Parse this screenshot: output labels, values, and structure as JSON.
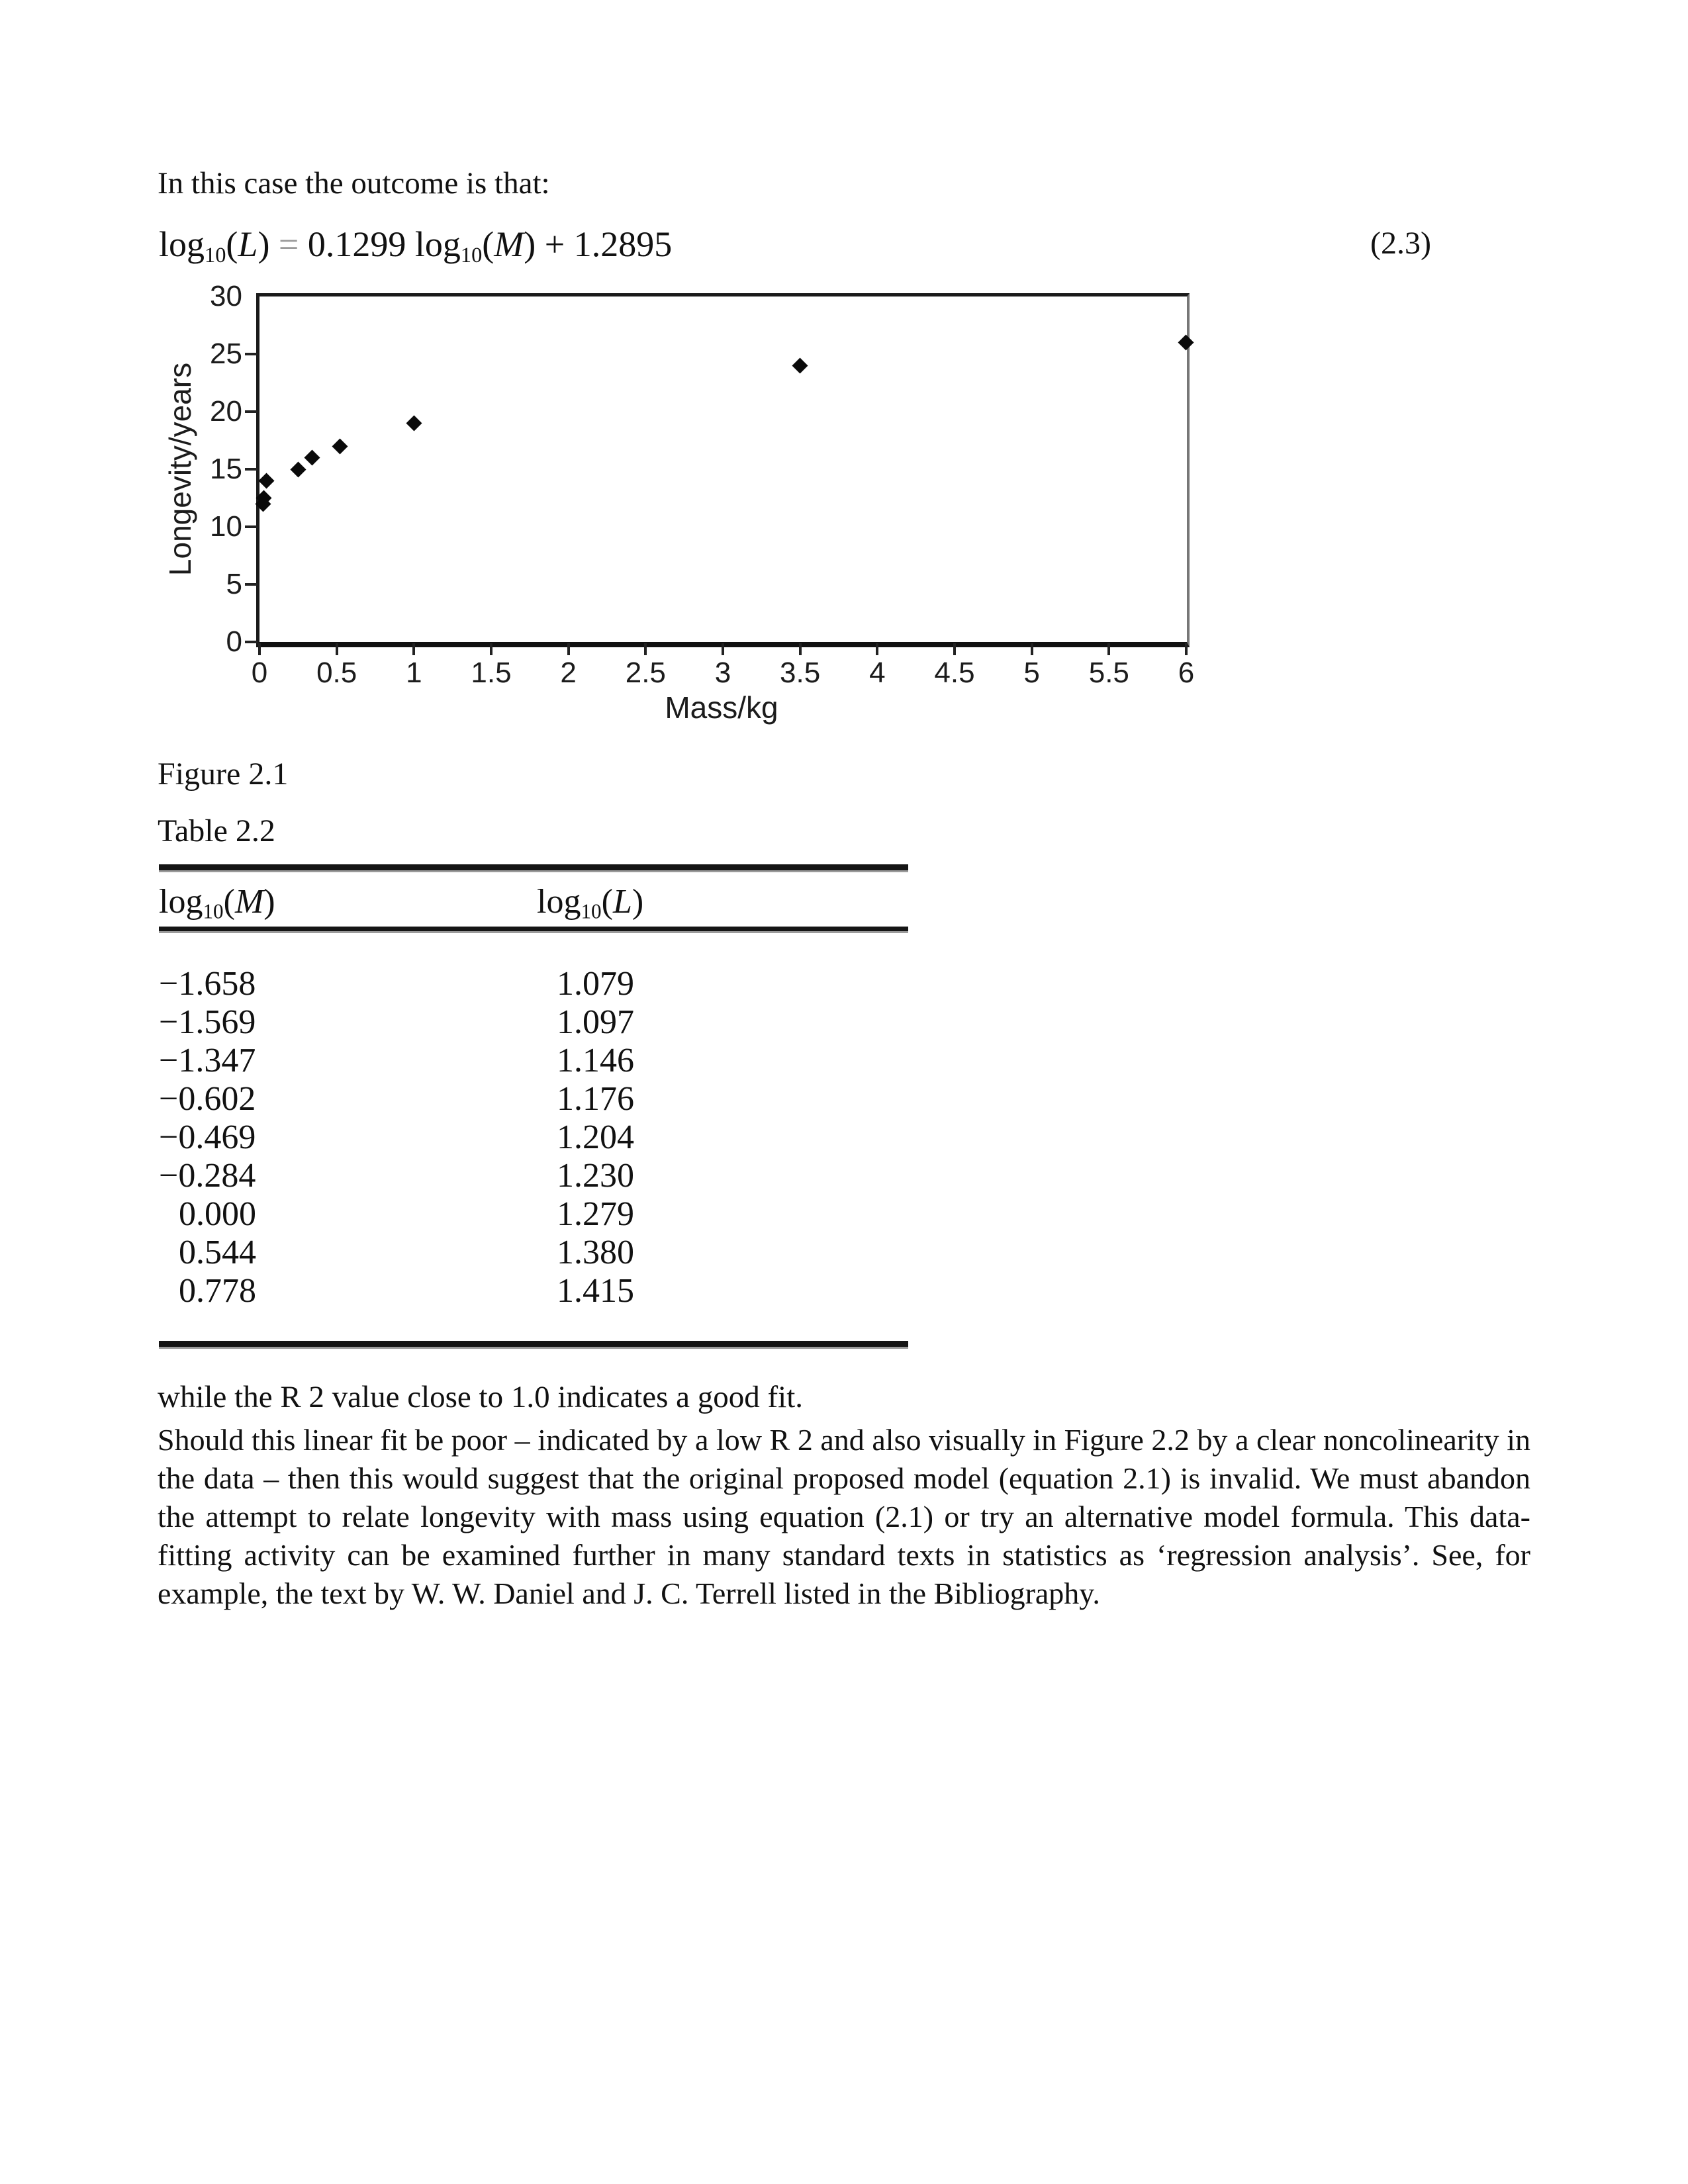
{
  "intro": {
    "text": "In this case the outcome is that:"
  },
  "equation": {
    "tokens": [
      {
        "t": "log"
      },
      {
        "t": "10",
        "sub": true
      },
      {
        "t": "("
      },
      {
        "t": "L",
        "italic": true
      },
      {
        "t": ")"
      },
      {
        "t": " = ",
        "gray": true
      },
      {
        "t": "0.1299 "
      },
      {
        "t": "log"
      },
      {
        "t": "10",
        "sub": true
      },
      {
        "t": "("
      },
      {
        "t": "M",
        "italic": true
      },
      {
        "t": ")"
      },
      {
        "t": " + 1.2895"
      }
    ],
    "label": "(2.3)"
  },
  "chart_data": {
    "type": "scatter",
    "title": "",
    "xlabel": "Mass/kg",
    "ylabel": "Longevity/years",
    "xlim": [
      0,
      6
    ],
    "ylim": [
      0,
      30
    ],
    "grid": false,
    "legend": "none",
    "marker": "diamond",
    "marker_color": "#0a0a0a",
    "x_ticks": {
      "values": [
        0,
        0.5,
        1,
        1.5,
        2,
        2.5,
        3,
        3.5,
        4,
        4.5,
        5,
        5.5,
        6
      ],
      "labels": [
        "0",
        "0.5",
        "1",
        "1.5",
        "2",
        "2.5",
        "3",
        "3.5",
        "4",
        "4.5",
        "5",
        "5.5",
        "6"
      ]
    },
    "y_ticks": {
      "values": [
        0,
        5,
        10,
        15,
        20,
        25,
        30
      ],
      "labels": [
        "0",
        "5",
        "10",
        "15",
        "20",
        "25",
        "30"
      ]
    },
    "points": [
      {
        "x": 0.022,
        "y": 12.0
      },
      {
        "x": 0.027,
        "y": 12.5
      },
      {
        "x": 0.045,
        "y": 14.0
      },
      {
        "x": 0.25,
        "y": 15.0
      },
      {
        "x": 0.34,
        "y": 16.0
      },
      {
        "x": 0.52,
        "y": 17.0
      },
      {
        "x": 1.0,
        "y": 19.0
      },
      {
        "x": 3.5,
        "y": 24.0
      },
      {
        "x": 6.0,
        "y": 26.0
      }
    ]
  },
  "figure_caption": "Figure 2.1",
  "table_caption": "Table 2.2",
  "table": {
    "headers": [
      {
        "tokens": [
          {
            "t": "log"
          },
          {
            "t": "10",
            "sub": true
          },
          {
            "t": "("
          },
          {
            "t": "M",
            "italic": true
          },
          {
            "t": ")"
          }
        ]
      },
      {
        "tokens": [
          {
            "t": "log"
          },
          {
            "t": "10",
            "sub": true
          },
          {
            "t": "("
          },
          {
            "t": "L",
            "italic": true
          },
          {
            "t": ")"
          }
        ]
      }
    ],
    "rows": [
      [
        "−1.658",
        "1.079"
      ],
      [
        "−1.569",
        "1.097"
      ],
      [
        "−1.347",
        "1.146"
      ],
      [
        "−0.602",
        "1.176"
      ],
      [
        "−0.469",
        "1.204"
      ],
      [
        "−0.284",
        "1.230"
      ],
      [
        "0.000",
        "1.279"
      ],
      [
        "0.544",
        "1.380"
      ],
      [
        "0.778",
        "1.415"
      ]
    ]
  },
  "body": {
    "line1": "while the R 2 value close to 1.0 indicates a good fit.",
    "paragraph": "Should this linear fit be poor – indicated by a low R 2 and also visually in Figure 2.2 by a clear noncolinearity in the data – then this would suggest that the original proposed model (equation 2.1) is invalid. We must abandon the attempt to relate longevity with mass using equation (2.1) or try an alternative model formula. This data-fitting activity can be examined further in many standard texts in statistics as ‘regression analysis’. See, for example, the text by W. W. Daniel and J. C. Terrell listed in the Bibliography."
  },
  "colors": {
    "text": "#111111",
    "equals_gray": "#9a9a9a",
    "rule": "#151515",
    "marker": "#0a0a0a"
  }
}
